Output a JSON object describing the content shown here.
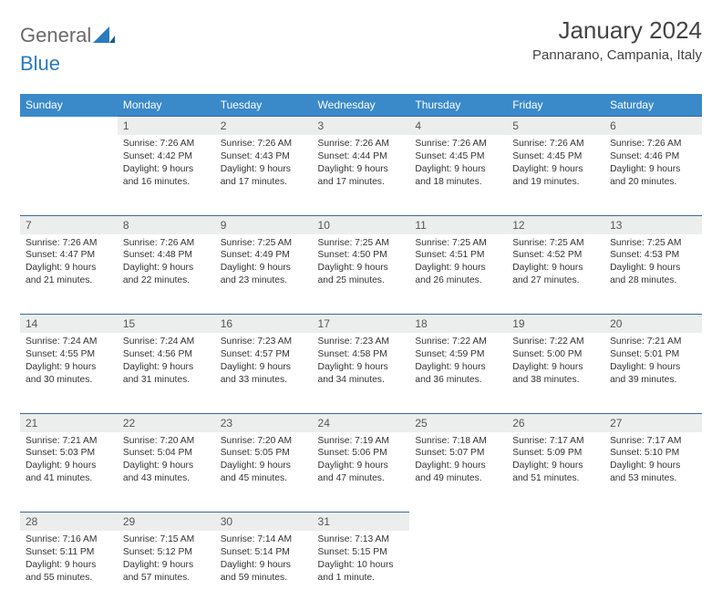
{
  "logo": {
    "part1": "General",
    "part2": "Blue"
  },
  "title": "January 2024",
  "location": "Pannarano, Campania, Italy",
  "weekdays": [
    "Sunday",
    "Monday",
    "Tuesday",
    "Wednesday",
    "Thursday",
    "Friday",
    "Saturday"
  ],
  "colors": {
    "header_bg": "#3a89c9",
    "daynum_bg": "#eceded",
    "rule": "#3a6a99",
    "logo_blue": "#2b7bbf",
    "text": "#333333"
  },
  "weeks": [
    [
      null,
      {
        "day": "1",
        "sunrise": "7:26 AM",
        "sunset": "4:42 PM",
        "daylight": "9 hours and 16 minutes."
      },
      {
        "day": "2",
        "sunrise": "7:26 AM",
        "sunset": "4:43 PM",
        "daylight": "9 hours and 17 minutes."
      },
      {
        "day": "3",
        "sunrise": "7:26 AM",
        "sunset": "4:44 PM",
        "daylight": "9 hours and 17 minutes."
      },
      {
        "day": "4",
        "sunrise": "7:26 AM",
        "sunset": "4:45 PM",
        "daylight": "9 hours and 18 minutes."
      },
      {
        "day": "5",
        "sunrise": "7:26 AM",
        "sunset": "4:45 PM",
        "daylight": "9 hours and 19 minutes."
      },
      {
        "day": "6",
        "sunrise": "7:26 AM",
        "sunset": "4:46 PM",
        "daylight": "9 hours and 20 minutes."
      }
    ],
    [
      {
        "day": "7",
        "sunrise": "7:26 AM",
        "sunset": "4:47 PM",
        "daylight": "9 hours and 21 minutes."
      },
      {
        "day": "8",
        "sunrise": "7:26 AM",
        "sunset": "4:48 PM",
        "daylight": "9 hours and 22 minutes."
      },
      {
        "day": "9",
        "sunrise": "7:25 AM",
        "sunset": "4:49 PM",
        "daylight": "9 hours and 23 minutes."
      },
      {
        "day": "10",
        "sunrise": "7:25 AM",
        "sunset": "4:50 PM",
        "daylight": "9 hours and 25 minutes."
      },
      {
        "day": "11",
        "sunrise": "7:25 AM",
        "sunset": "4:51 PM",
        "daylight": "9 hours and 26 minutes."
      },
      {
        "day": "12",
        "sunrise": "7:25 AM",
        "sunset": "4:52 PM",
        "daylight": "9 hours and 27 minutes."
      },
      {
        "day": "13",
        "sunrise": "7:25 AM",
        "sunset": "4:53 PM",
        "daylight": "9 hours and 28 minutes."
      }
    ],
    [
      {
        "day": "14",
        "sunrise": "7:24 AM",
        "sunset": "4:55 PM",
        "daylight": "9 hours and 30 minutes."
      },
      {
        "day": "15",
        "sunrise": "7:24 AM",
        "sunset": "4:56 PM",
        "daylight": "9 hours and 31 minutes."
      },
      {
        "day": "16",
        "sunrise": "7:23 AM",
        "sunset": "4:57 PM",
        "daylight": "9 hours and 33 minutes."
      },
      {
        "day": "17",
        "sunrise": "7:23 AM",
        "sunset": "4:58 PM",
        "daylight": "9 hours and 34 minutes."
      },
      {
        "day": "18",
        "sunrise": "7:22 AM",
        "sunset": "4:59 PM",
        "daylight": "9 hours and 36 minutes."
      },
      {
        "day": "19",
        "sunrise": "7:22 AM",
        "sunset": "5:00 PM",
        "daylight": "9 hours and 38 minutes."
      },
      {
        "day": "20",
        "sunrise": "7:21 AM",
        "sunset": "5:01 PM",
        "daylight": "9 hours and 39 minutes."
      }
    ],
    [
      {
        "day": "21",
        "sunrise": "7:21 AM",
        "sunset": "5:03 PM",
        "daylight": "9 hours and 41 minutes."
      },
      {
        "day": "22",
        "sunrise": "7:20 AM",
        "sunset": "5:04 PM",
        "daylight": "9 hours and 43 minutes."
      },
      {
        "day": "23",
        "sunrise": "7:20 AM",
        "sunset": "5:05 PM",
        "daylight": "9 hours and 45 minutes."
      },
      {
        "day": "24",
        "sunrise": "7:19 AM",
        "sunset": "5:06 PM",
        "daylight": "9 hours and 47 minutes."
      },
      {
        "day": "25",
        "sunrise": "7:18 AM",
        "sunset": "5:07 PM",
        "daylight": "9 hours and 49 minutes."
      },
      {
        "day": "26",
        "sunrise": "7:17 AM",
        "sunset": "5:09 PM",
        "daylight": "9 hours and 51 minutes."
      },
      {
        "day": "27",
        "sunrise": "7:17 AM",
        "sunset": "5:10 PM",
        "daylight": "9 hours and 53 minutes."
      }
    ],
    [
      {
        "day": "28",
        "sunrise": "7:16 AM",
        "sunset": "5:11 PM",
        "daylight": "9 hours and 55 minutes."
      },
      {
        "day": "29",
        "sunrise": "7:15 AM",
        "sunset": "5:12 PM",
        "daylight": "9 hours and 57 minutes."
      },
      {
        "day": "30",
        "sunrise": "7:14 AM",
        "sunset": "5:14 PM",
        "daylight": "9 hours and 59 minutes."
      },
      {
        "day": "31",
        "sunrise": "7:13 AM",
        "sunset": "5:15 PM",
        "daylight": "10 hours and 1 minute."
      },
      null,
      null,
      null
    ]
  ]
}
